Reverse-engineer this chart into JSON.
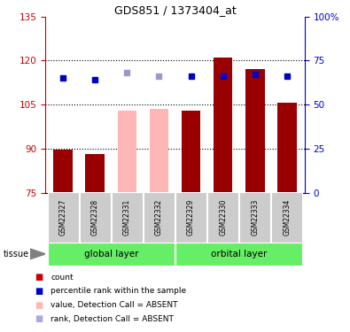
{
  "title": "GDS851 / 1373404_at",
  "samples": [
    "GSM22327",
    "GSM22328",
    "GSM22331",
    "GSM22332",
    "GSM22329",
    "GSM22330",
    "GSM22333",
    "GSM22334"
  ],
  "bar_values": [
    89.5,
    88.0,
    103.0,
    103.5,
    103.0,
    121.0,
    117.0,
    105.5
  ],
  "bar_colors": [
    "#990000",
    "#990000",
    "#FFB6B6",
    "#FFB6B6",
    "#990000",
    "#990000",
    "#990000",
    "#990000"
  ],
  "rank_values": [
    65,
    64,
    68,
    66,
    66,
    66,
    67,
    66
  ],
  "rank_colors": [
    "#0000CC",
    "#0000CC",
    "#9999CC",
    "#9999CC",
    "#0000CC",
    "#0000CC",
    "#0000CC",
    "#0000CC"
  ],
  "ylim_left": [
    75,
    135
  ],
  "ylim_right": [
    0,
    100
  ],
  "yticks_left": [
    75,
    90,
    105,
    120,
    135
  ],
  "yticks_right": [
    0,
    25,
    50,
    75,
    100
  ],
  "ytick_labels_left": [
    "75",
    "90",
    "105",
    "120",
    "135"
  ],
  "ytick_labels_right": [
    "0",
    "25",
    "50",
    "75",
    "100%"
  ],
  "left_axis_color": "#CC0000",
  "right_axis_color": "#0000CC",
  "group_bg_color": "#66EE66",
  "sample_bg_color": "#CCCCCC",
  "tissue_label": "tissue",
  "legend_items": [
    {
      "color": "#CC0000",
      "label": "count"
    },
    {
      "color": "#0000CC",
      "label": "percentile rank within the sample"
    },
    {
      "color": "#FFB6B6",
      "label": "value, Detection Call = ABSENT"
    },
    {
      "color": "#AAAADD",
      "label": "rank, Detection Call = ABSENT"
    }
  ],
  "grid_lines": [
    90,
    105,
    120
  ]
}
